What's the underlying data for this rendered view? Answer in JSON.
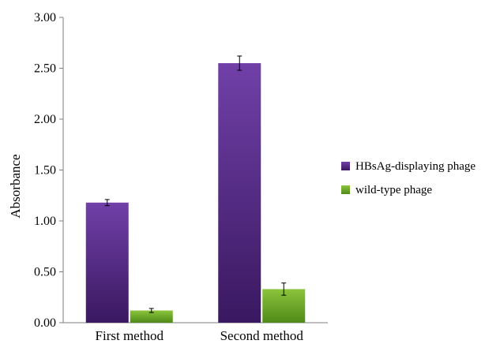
{
  "chart_data": {
    "type": "bar",
    "title": "",
    "xlabel": "",
    "ylabel": "Absorbance",
    "ylim": [
      0,
      3
    ],
    "yticks": [
      "0.00",
      "0.50",
      "1.00",
      "1.50",
      "2.00",
      "2.50",
      "3.00"
    ],
    "categories": [
      "First method",
      "Second method"
    ],
    "series": [
      {
        "name": "HBsAg-displaying phage",
        "color_top": "#7040a8",
        "color_bottom": "#3a1860",
        "values": [
          1.18,
          2.55
        ],
        "errors": [
          0.03,
          0.07
        ]
      },
      {
        "name": "wild-type phage",
        "color_top": "#8cc43c",
        "color_bottom": "#4f8a18",
        "values": [
          0.12,
          0.33
        ],
        "errors": [
          0.02,
          0.06
        ]
      }
    ],
    "grid": false,
    "legend": "right"
  }
}
